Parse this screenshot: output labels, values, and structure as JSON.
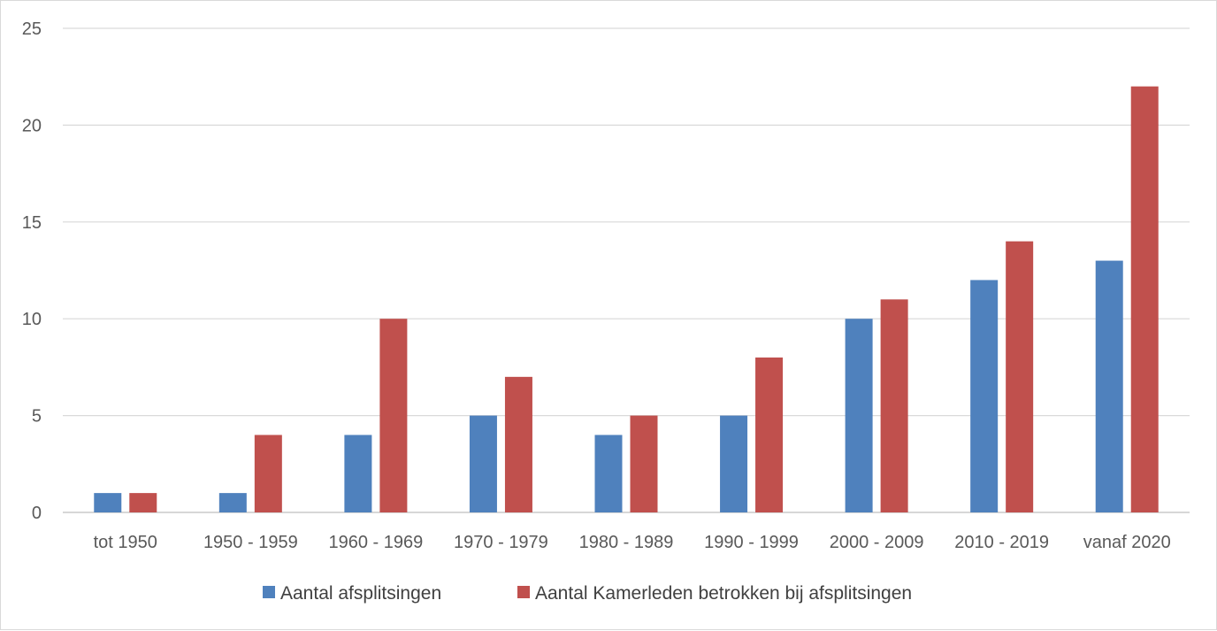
{
  "chart_data": {
    "type": "bar",
    "title": "",
    "xlabel": "",
    "ylabel": "",
    "categories": [
      "tot 1950",
      "1950 - 1959",
      "1960 - 1969",
      "1970 - 1979",
      "1980 - 1989",
      "1990 - 1999",
      "2000 - 2009",
      "2010 - 2019",
      "vanaf 2020"
    ],
    "series": [
      {
        "name": "Aantal afsplitsingen",
        "color": "#4f81bd",
        "values": [
          1,
          1,
          4,
          5,
          4,
          5,
          10,
          12,
          13
        ]
      },
      {
        "name": "Aantal Kamerleden betrokken bij afsplitsingen",
        "color": "#c0504d",
        "values": [
          1,
          4,
          10,
          7,
          5,
          8,
          11,
          14,
          22
        ]
      }
    ],
    "ylim": [
      0,
      25
    ],
    "yticks": [
      0,
      5,
      10,
      15,
      20,
      25
    ],
    "grid": true,
    "legend": "bottom"
  }
}
